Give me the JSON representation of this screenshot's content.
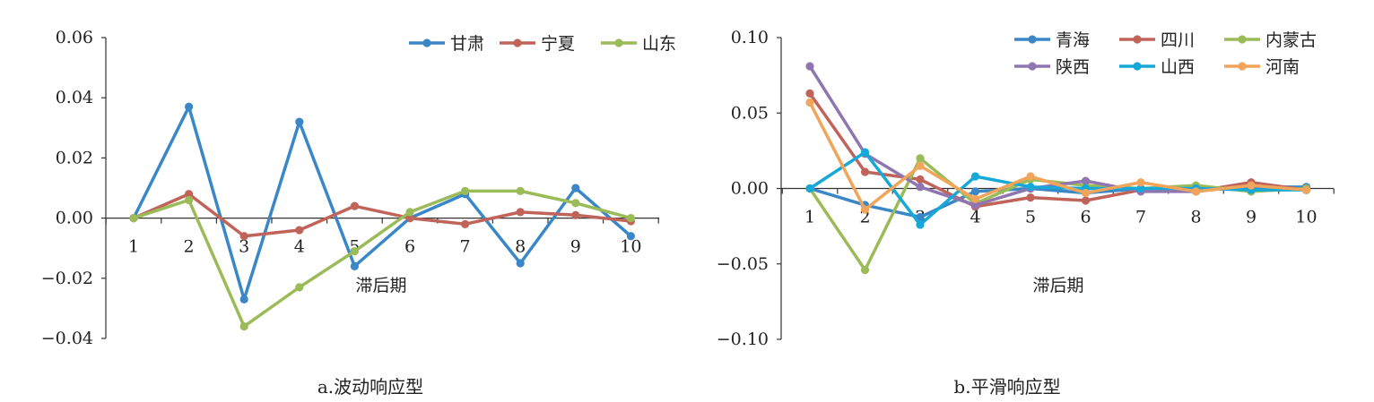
{
  "chart_data": [
    {
      "type": "line",
      "caption": "a.波动响应型",
      "xlabel": "滞后期",
      "ylabel": "",
      "x": [
        1,
        2,
        3,
        4,
        5,
        6,
        7,
        8,
        9,
        10
      ],
      "ylim": [
        -0.04,
        0.06
      ],
      "yticks": [
        -0.04,
        -0.02,
        0.0,
        0.02,
        0.04,
        0.06
      ],
      "ytick_labels": [
        "−0.04",
        "−0.02",
        "0.00",
        "0.02",
        "0.04",
        "0.06"
      ],
      "legend_position": "top-right",
      "series": [
        {
          "name": "甘肃",
          "color": "#3a87c8",
          "values": [
            0.0,
            0.037,
            -0.027,
            0.032,
            -0.016,
            0.0,
            0.008,
            -0.015,
            0.01,
            -0.006
          ]
        },
        {
          "name": "宁夏",
          "color": "#c0645a",
          "values": [
            0.0,
            0.008,
            -0.006,
            -0.004,
            0.004,
            0.0,
            -0.002,
            0.002,
            0.001,
            -0.001
          ]
        },
        {
          "name": "山东",
          "color": "#9bbb59",
          "values": [
            0.0,
            0.006,
            -0.036,
            -0.023,
            -0.011,
            0.002,
            0.009,
            0.009,
            0.005,
            0.0
          ]
        }
      ]
    },
    {
      "type": "line",
      "caption": "b.平滑响应型",
      "xlabel": "滞后期",
      "ylabel": "",
      "x": [
        1,
        2,
        3,
        4,
        5,
        6,
        7,
        8,
        9,
        10
      ],
      "ylim": [
        -0.1,
        0.1
      ],
      "yticks": [
        -0.1,
        -0.05,
        0.0,
        0.05,
        0.1
      ],
      "ytick_labels": [
        "−0.10",
        "−0.05",
        "0.00",
        "0.05",
        "0.10"
      ],
      "legend_position": "top-right",
      "series": [
        {
          "name": "青海",
          "color": "#3a87c8",
          "values": [
            0.0,
            -0.011,
            -0.019,
            -0.002,
            0.0,
            -0.003,
            0.0,
            -0.001,
            0.001,
            0.001
          ]
        },
        {
          "name": "四川",
          "color": "#c0645a",
          "values": [
            0.063,
            0.011,
            0.006,
            -0.012,
            -0.006,
            -0.008,
            -0.001,
            -0.002,
            0.004,
            -0.001
          ]
        },
        {
          "name": "内蒙古",
          "color": "#9bbb59",
          "values": [
            0.0,
            -0.054,
            0.02,
            -0.01,
            0.006,
            0.002,
            0.0,
            0.002,
            -0.002,
            0.0
          ]
        },
        {
          "name": "陕西",
          "color": "#8f76b0",
          "values": [
            0.081,
            0.023,
            0.001,
            -0.011,
            0.0,
            0.005,
            -0.002,
            -0.002,
            0.002,
            -0.001
          ]
        },
        {
          "name": "山西",
          "color": "#16a9d8",
          "values": [
            0.0,
            0.024,
            -0.024,
            0.008,
            0.001,
            0.0,
            0.0,
            0.0,
            -0.001,
            -0.001
          ]
        },
        {
          "name": "河南",
          "color": "#f1a55a",
          "values": [
            0.057,
            -0.014,
            0.015,
            -0.007,
            0.008,
            -0.003,
            0.004,
            -0.002,
            0.002,
            -0.001
          ]
        }
      ]
    }
  ]
}
